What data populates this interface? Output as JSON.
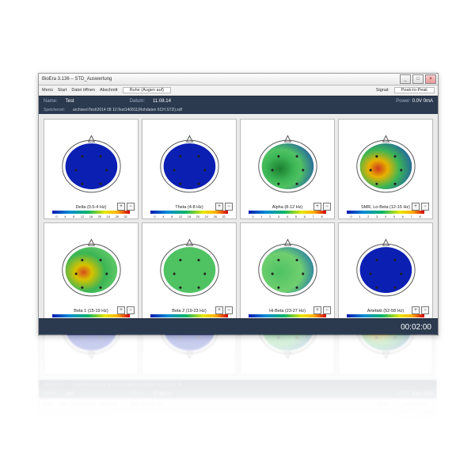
{
  "window": {
    "title": "BioEra 3.136 – STD_Auswertung",
    "menu": {
      "items": [
        "Menü",
        "Start",
        "Datei öffnen",
        "Abschnitt"
      ],
      "mode_label": "Ruhe (Augen auf)",
      "signal_label": "Signal:",
      "signal_value": "Peak-to-Peak"
    },
    "info1": {
      "name_label": "Name:",
      "name_val": "Test",
      "date_label": "Datum:",
      "date_val": "11.08.14",
      "power_label": "Power:",
      "power_val": "0.0V   0mA"
    },
    "info2": {
      "store_label": "Speicherort:",
      "store_val": "archives\\Test\\2014 08 11\\Test140811(Rohdaten 6CH STD).xdf"
    },
    "timer": "00:02:00"
  },
  "scale": {
    "colors": [
      "#0018b0",
      "#008bd6",
      "#00b36b",
      "#e8e800",
      "#ffb000",
      "#d40000"
    ]
  },
  "heads": [
    {
      "label": "Delta (0.5-4 Hz)",
      "stops": [
        [
          "#0b1fb3",
          "0%"
        ],
        [
          "#0b1fb3",
          "100%"
        ]
      ],
      "ticks": [
        "0",
        "4",
        "8",
        "12",
        "16",
        "20",
        "24",
        "28",
        "32"
      ]
    },
    {
      "label": "Theta (4-8 Hz)",
      "stops": [
        [
          "#0b1fb3",
          "0%"
        ],
        [
          "#0b1fb3",
          "100%"
        ]
      ],
      "ticks": [
        "0",
        "4",
        "8",
        "12",
        "16",
        "20",
        "24",
        "28",
        "32"
      ]
    },
    {
      "label": "Alpha (8-12 Hz)",
      "stops": [
        [
          "#1b7e2f",
          "0%"
        ],
        [
          "#3bb555",
          "35%"
        ],
        [
          "#4fc262",
          "55%"
        ],
        [
          "#1b4fb0",
          "100%"
        ]
      ],
      "ticks": [
        "0",
        "1",
        "2",
        "3",
        "4",
        "5",
        "6",
        "7",
        "8"
      ]
    },
    {
      "label": "SMR, Lo-Beta (12-15 Hz)",
      "stops": [
        [
          "#cf3a1d",
          "0%"
        ],
        [
          "#e8b200",
          "25%"
        ],
        [
          "#3bb555",
          "55%"
        ],
        [
          "#1b4fb0",
          "100%"
        ]
      ],
      "ticks": [
        "0",
        "1",
        "2",
        "3",
        "4",
        "5",
        "6",
        "7",
        "8"
      ]
    },
    {
      "label": "Beta 1 (15-19 Hz)",
      "stops": [
        [
          "#d84a1d",
          "0%"
        ],
        [
          "#d7c300",
          "22%"
        ],
        [
          "#3bb555",
          "55%"
        ],
        [
          "#6fcf6f",
          "100%"
        ]
      ],
      "ticks": [
        "0",
        "1",
        "2",
        "3",
        "4",
        "5",
        "6",
        "7",
        "8"
      ]
    },
    {
      "label": "Beta 2 (19-23 Hz)",
      "stops": [
        [
          "#4fc262",
          "0%"
        ],
        [
          "#4fc262",
          "100%"
        ]
      ],
      "ticks": [
        "0",
        "1",
        "2",
        "3",
        "4",
        "5",
        "6",
        "7",
        "8"
      ]
    },
    {
      "label": "Hi-Beta (23-27 Hz)",
      "stops": [
        [
          "#4fc262",
          "0%"
        ],
        [
          "#6fcf6f",
          "55%"
        ],
        [
          "#1b6fb0",
          "100%"
        ]
      ],
      "ticks": [
        "0",
        "1",
        "2",
        "3",
        "4",
        "5",
        "6",
        "7",
        "8"
      ]
    },
    {
      "label": "Artefakt (52-58 Hz)",
      "stops": [
        [
          "#0b1fb3",
          "0%"
        ],
        [
          "#0b1fb3",
          "100%"
        ]
      ],
      "ticks": [
        "0",
        "4",
        "8",
        "12",
        "16",
        "20",
        "24",
        "28",
        "32"
      ]
    }
  ],
  "electrodes": [
    [
      38,
      42
    ],
    [
      62,
      42
    ],
    [
      30,
      60
    ],
    [
      70,
      60
    ],
    [
      38,
      78
    ],
    [
      62,
      78
    ]
  ],
  "btn": {
    "plus": "+",
    "minus": "−",
    "min": "_",
    "max": "□",
    "close": "×"
  }
}
